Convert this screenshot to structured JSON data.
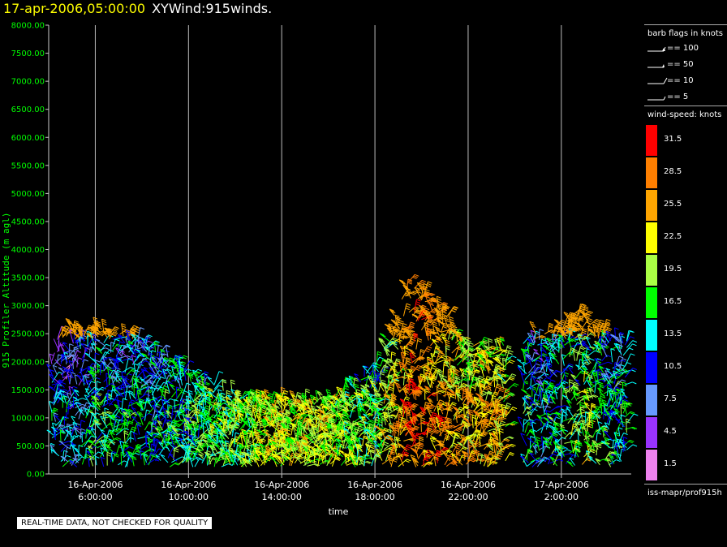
{
  "title": {
    "date": "17-apr-2006,05:00:00",
    "name": "XYWind:915winds."
  },
  "legend": {
    "barb_header": "barb flags in knots",
    "barb_items": [
      {
        "label": "== 100",
        "kind": "pennant"
      },
      {
        "label": "== 50",
        "kind": "pennant-small"
      },
      {
        "label": "== 10",
        "kind": "full"
      },
      {
        "label": "== 5",
        "kind": "half"
      }
    ],
    "speed_header": "wind-speed: knots",
    "speed_bins": [
      {
        "label": "31.5",
        "color": "#ff0000"
      },
      {
        "label": "28.5",
        "color": "#ff7f00"
      },
      {
        "label": "25.5",
        "color": "#ffa500"
      },
      {
        "label": "22.5",
        "color": "#ffff00"
      },
      {
        "label": "19.5",
        "color": "#aaff44"
      },
      {
        "label": "16.5",
        "color": "#00ff00"
      },
      {
        "label": "13.5",
        "color": "#00ffff"
      },
      {
        "label": "10.5",
        "color": "#0000ff"
      },
      {
        "label": "7.5",
        "color": "#6699ff"
      },
      {
        "label": "4.5",
        "color": "#9933ff"
      },
      {
        "label": "1.5",
        "color": "#ee82ee"
      }
    ],
    "source": "iss-mapr/prof915h"
  },
  "footer_note": "REAL-TIME DATA, NOT CHECKED FOR QUALITY",
  "chart_data": {
    "type": "scatter",
    "title": "XYWind:915winds.",
    "xlabel": "time",
    "ylabel": "915 Profiler Altitude (m agl)",
    "ylim": [
      0,
      8000
    ],
    "xlim": [
      "2006-04-16 04:00",
      "2006-04-17 05:00"
    ],
    "y_ticks": [
      "0.00",
      "500.00",
      "1000.00",
      "1500.00",
      "2000.00",
      "2500.00",
      "3000.00",
      "3500.00",
      "4000.00",
      "4500.00",
      "5000.00",
      "5500.00",
      "6000.00",
      "6500.00",
      "7000.00",
      "7500.00",
      "8000.00"
    ],
    "x_ticks": [
      {
        "t": "2006-04-16 06:00",
        "line1": "16-Apr-2006",
        "line2": "6:00:00"
      },
      {
        "t": "2006-04-16 10:00",
        "line1": "16-Apr-2006",
        "line2": "10:00:00"
      },
      {
        "t": "2006-04-16 14:00",
        "line1": "16-Apr-2006",
        "line2": "14:00:00"
      },
      {
        "t": "2006-04-16 18:00",
        "line1": "16-Apr-2006",
        "line2": "18:00:00"
      },
      {
        "t": "2006-04-16 22:00",
        "line1": "16-Apr-2006",
        "line2": "22:00:00"
      },
      {
        "t": "2006-04-17 02:00",
        "line1": "17-Apr-2006",
        "line2": "2:00:00"
      }
    ],
    "vertical_gridlines": true,
    "series": [
      {
        "time": "2006-04-16 04:00",
        "top_altitude": 2200,
        "dominant_speed": 12
      },
      {
        "time": "2006-04-16 05:00",
        "top_altitude": 2500,
        "dominant_speed": 10
      },
      {
        "time": "2006-04-16 06:00",
        "top_altitude": 2500,
        "dominant_speed": 15
      },
      {
        "time": "2006-04-16 08:00",
        "top_altitude": 2300,
        "dominant_speed": 13
      },
      {
        "time": "2006-04-16 10:00",
        "top_altitude": 1700,
        "dominant_speed": 16
      },
      {
        "time": "2006-04-16 12:00",
        "top_altitude": 1300,
        "dominant_speed": 18
      },
      {
        "time": "2006-04-16 14:00",
        "top_altitude": 1200,
        "dominant_speed": 21
      },
      {
        "time": "2006-04-16 16:00",
        "top_altitude": 1200,
        "dominant_speed": 20
      },
      {
        "time": "2006-04-16 18:00",
        "top_altitude": 1800,
        "dominant_speed": 17
      },
      {
        "time": "2006-04-16 19:30",
        "top_altitude": 3400,
        "dominant_speed": 30
      },
      {
        "time": "2006-04-16 21:00",
        "top_altitude": 2800,
        "dominant_speed": 26
      },
      {
        "time": "2006-04-16 22:00",
        "top_altitude": 2200,
        "dominant_speed": 24
      },
      {
        "time": "2006-04-16 23:00",
        "top_altitude": 2100,
        "dominant_speed": 25
      },
      {
        "time": "2006-04-17 01:00",
        "top_altitude": 2400,
        "dominant_speed": 12
      },
      {
        "time": "2006-04-17 03:00",
        "top_altitude": 2800,
        "dominant_speed": 20
      },
      {
        "time": "2006-04-17 04:00",
        "top_altitude": 2300,
        "dominant_speed": 14
      }
    ]
  }
}
